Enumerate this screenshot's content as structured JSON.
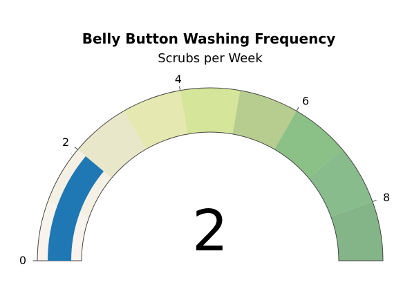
{
  "chart_data": {
    "type": "gauge",
    "title": "Belly Button Washing Frequency",
    "subtitle": "Scrubs per Week",
    "value": 2,
    "value_label": "2",
    "range": [
      0,
      9
    ],
    "ticks": [
      {
        "value": 0,
        "label": "0"
      },
      {
        "value": 2,
        "label": "2"
      },
      {
        "value": 4,
        "label": "4"
      },
      {
        "value": 6,
        "label": "6"
      },
      {
        "value": 8,
        "label": "8"
      }
    ],
    "steps": [
      {
        "range": [
          0,
          1
        ],
        "color": "#f8f3ec"
      },
      {
        "range": [
          1,
          2
        ],
        "color": "#f4f1e4"
      },
      {
        "range": [
          2,
          3
        ],
        "color": "#e9e7c9"
      },
      {
        "range": [
          3,
          4
        ],
        "color": "#e5e8b0"
      },
      {
        "range": [
          4,
          5
        ],
        "color": "#d5e599"
      },
      {
        "range": [
          5,
          6
        ],
        "color": "#b7cd8f"
      },
      {
        "range": [
          6,
          7
        ],
        "color": "#8bc086"
      },
      {
        "range": [
          7,
          8
        ],
        "color": "#89bc8d"
      },
      {
        "range": [
          8,
          9
        ],
        "color": "#84b588"
      }
    ],
    "bar_color": "#1f77b4"
  }
}
